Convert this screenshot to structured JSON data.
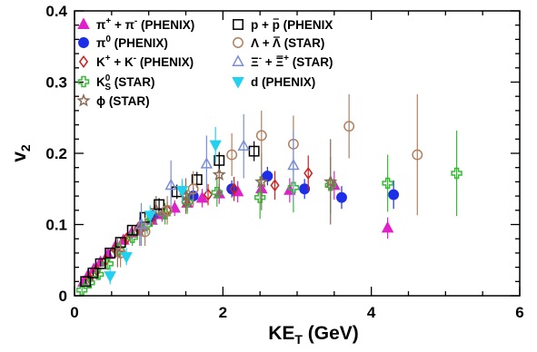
{
  "chart_data": {
    "type": "scatter",
    "title": "",
    "xlabel": "KE",
    "xlabel_sub": "T",
    "xlabel_unit": "(GeV)",
    "ylabel": "v",
    "ylabel_sub": "2",
    "xlim": [
      0,
      6
    ],
    "ylim": [
      0,
      0.4
    ],
    "xticks": [
      "0",
      "2",
      "4",
      "6"
    ],
    "yticks": [
      "0",
      "0.1",
      "0.2",
      "0.3",
      "0.4"
    ],
    "x_tick_values": [
      0,
      2,
      4,
      6
    ],
    "y_tick_values": [
      0,
      0.1,
      0.2,
      0.3,
      0.4
    ],
    "grid": false,
    "legend_position": "top-left",
    "series": [
      {
        "legend": [
          "π",
          "+",
          " + π",
          "-",
          " (PHENIX)"
        ],
        "marker": "triangle-up",
        "filled": true,
        "color": "#e020c8",
        "points": [
          [
            0.12,
            0.019,
            0.004
          ],
          [
            0.18,
            0.028,
            0.004
          ],
          [
            0.26,
            0.037,
            0.005
          ],
          [
            0.35,
            0.047,
            0.005
          ],
          [
            0.45,
            0.058,
            0.006
          ],
          [
            0.55,
            0.069,
            0.006
          ],
          [
            0.66,
            0.078,
            0.007
          ],
          [
            0.77,
            0.088,
            0.008
          ],
          [
            0.9,
            0.097,
            0.008
          ],
          [
            1.04,
            0.106,
            0.009
          ],
          [
            1.18,
            0.114,
            0.01
          ],
          [
            1.35,
            0.123,
            0.011
          ],
          [
            1.52,
            0.13,
            0.012
          ],
          [
            1.72,
            0.137,
            0.013
          ],
          [
            1.95,
            0.143,
            0.014
          ],
          [
            2.2,
            0.146,
            0.015
          ],
          [
            2.52,
            0.15,
            0.016
          ],
          [
            2.9,
            0.148,
            0.017
          ],
          [
            3.5,
            0.155,
            0.02
          ],
          [
            4.22,
            0.095,
            0.015
          ]
        ]
      },
      {
        "legend": [
          "π",
          "0",
          " (PHENIX)"
        ],
        "marker": "circle",
        "filled": true,
        "color": "#1c2ee8",
        "points": [
          [
            1.05,
            0.112,
            0.01
          ],
          [
            1.6,
            0.14,
            0.012
          ],
          [
            2.12,
            0.15,
            0.012
          ],
          [
            2.6,
            0.168,
            0.013
          ],
          [
            3.1,
            0.15,
            0.014
          ],
          [
            3.6,
            0.138,
            0.016
          ],
          [
            4.3,
            0.142,
            0.02
          ]
        ]
      },
      {
        "legend": [
          "K",
          "+",
          " + K",
          "-",
          " (PHENIX)"
        ],
        "marker": "diamond",
        "filled": false,
        "color": "#cc2222",
        "points": [
          [
            0.2,
            0.025,
            0.005
          ],
          [
            0.3,
            0.036,
            0.005
          ],
          [
            0.42,
            0.05,
            0.006
          ],
          [
            0.55,
            0.065,
            0.007
          ],
          [
            0.7,
            0.08,
            0.008
          ],
          [
            0.86,
            0.095,
            0.009
          ],
          [
            1.03,
            0.108,
            0.01
          ],
          [
            1.25,
            0.12,
            0.012
          ],
          [
            1.5,
            0.132,
            0.013
          ],
          [
            1.8,
            0.142,
            0.015
          ],
          [
            2.15,
            0.15,
            0.017
          ],
          [
            2.7,
            0.155,
            0.02
          ],
          [
            3.15,
            0.172,
            0.025
          ]
        ]
      },
      {
        "legend": [
          "K",
          "0",
          "S",
          " (STAR)"
        ],
        "marker": "cross",
        "filled": false,
        "color": "#33bb33",
        "points": [
          [
            0.1,
            0.008,
            0.006
          ],
          [
            0.2,
            0.018,
            0.007
          ],
          [
            0.32,
            0.03,
            0.008
          ],
          [
            0.45,
            0.045,
            0.009
          ],
          [
            0.6,
            0.065,
            0.01
          ],
          [
            0.78,
            0.082,
            0.012
          ],
          [
            0.98,
            0.1,
            0.013
          ],
          [
            1.22,
            0.115,
            0.015
          ],
          [
            1.52,
            0.132,
            0.017
          ],
          [
            1.92,
            0.145,
            0.02
          ],
          [
            2.5,
            0.138,
            0.03
          ],
          [
            2.95,
            0.152,
            0.035
          ],
          [
            3.45,
            0.155,
            0.04
          ],
          [
            4.22,
            0.158,
            0.04
          ],
          [
            5.15,
            0.172,
            0.06
          ]
        ]
      },
      {
        "legend": [
          "ϕ (STAR)"
        ],
        "marker": "star",
        "filled": false,
        "color": "#8a6a55",
        "points": [
          [
            0.58,
            0.06,
            0.02
          ],
          [
            0.88,
            0.09,
            0.02
          ],
          [
            1.1,
            0.12,
            0.02
          ],
          [
            1.5,
            0.14,
            0.025
          ],
          [
            1.95,
            0.17,
            0.03
          ],
          [
            2.52,
            0.16,
            0.04
          ],
          [
            3.45,
            0.16,
            0.06
          ]
        ]
      },
      {
        "legend": [
          "p + ",
          "p",
          " (PHENIX"
        ],
        "marker": "square",
        "filled": false,
        "color": "#000000",
        "points": [
          [
            0.15,
            0.02,
            0.003
          ],
          [
            0.25,
            0.032,
            0.004
          ],
          [
            0.35,
            0.045,
            0.004
          ],
          [
            0.48,
            0.06,
            0.005
          ],
          [
            0.62,
            0.075,
            0.006
          ],
          [
            0.78,
            0.092,
            0.007
          ],
          [
            0.95,
            0.11,
            0.008
          ],
          [
            1.14,
            0.128,
            0.009
          ],
          [
            1.38,
            0.146,
            0.01
          ],
          [
            1.65,
            0.163,
            0.011
          ],
          [
            1.95,
            0.19,
            0.012
          ],
          [
            2.42,
            0.203,
            0.014
          ]
        ]
      },
      {
        "legend": [
          "Λ + ",
          "Λ",
          " (STAR)"
        ],
        "marker": "circle",
        "filled": false,
        "color": "#b08060",
        "points": [
          [
            0.62,
            0.06,
            0.02
          ],
          [
            0.95,
            0.09,
            0.02
          ],
          [
            1.25,
            0.12,
            0.02
          ],
          [
            1.6,
            0.15,
            0.025
          ],
          [
            2.12,
            0.198,
            0.03
          ],
          [
            2.52,
            0.225,
            0.035
          ],
          [
            2.95,
            0.213,
            0.04
          ],
          [
            3.7,
            0.238,
            0.045
          ],
          [
            4.62,
            0.198,
            0.085
          ]
        ]
      },
      {
        "legend": [
          "Ξ",
          "-",
          " + ",
          "Ξ",
          "+",
          " (STAR)"
        ],
        "marker": "triangle-up",
        "filled": false,
        "color": "#7a8ed8",
        "points": [
          [
            0.9,
            0.1,
            0.03
          ],
          [
            1.3,
            0.155,
            0.035
          ],
          [
            1.78,
            0.185,
            0.04
          ],
          [
            2.28,
            0.21,
            0.045
          ],
          [
            2.95,
            0.183,
            0.05
          ]
        ]
      },
      {
        "legend": [
          "d (PHENIX)"
        ],
        "marker": "triangle-down",
        "filled": true,
        "color": "#22d0f0",
        "points": [
          [
            0.48,
            0.028,
            0.012
          ],
          [
            0.7,
            0.055,
            0.012
          ],
          [
            1.02,
            0.113,
            0.014
          ],
          [
            1.45,
            0.148,
            0.016
          ],
          [
            1.9,
            0.212,
            0.025
          ]
        ]
      }
    ]
  }
}
